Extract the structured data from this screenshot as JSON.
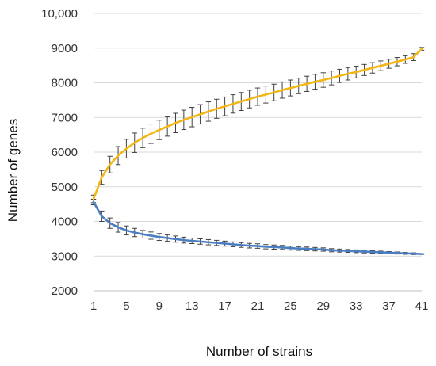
{
  "chart_data": {
    "type": "line",
    "xlabel": "Number of strains",
    "ylabel": "Number of genes",
    "xlim": [
      1,
      41
    ],
    "ylim": [
      2000,
      10000
    ],
    "x_ticks": [
      1,
      5,
      9,
      13,
      17,
      21,
      25,
      29,
      33,
      37,
      41
    ],
    "y_ticks": [
      2000,
      3000,
      4000,
      5000,
      6000,
      7000,
      8000,
      9000,
      10000
    ],
    "y_tick_labels": [
      "2000",
      "3000",
      "4000",
      "5000",
      "6000",
      "7000",
      "8000",
      "9000",
      "10,000"
    ],
    "grid": "horizontal",
    "legend": "none",
    "error_bar_color": "#404040",
    "x": [
      1,
      2,
      3,
      4,
      5,
      6,
      7,
      8,
      9,
      10,
      11,
      12,
      13,
      14,
      15,
      16,
      17,
      18,
      19,
      20,
      21,
      22,
      23,
      24,
      25,
      26,
      27,
      28,
      29,
      30,
      31,
      32,
      33,
      34,
      35,
      36,
      37,
      38,
      39,
      40,
      41
    ],
    "series": [
      {
        "color": "#F2B616",
        "values": [
          4650,
          5270,
          5640,
          5900,
          6100,
          6270,
          6410,
          6530,
          6640,
          6740,
          6840,
          6930,
          7010,
          7090,
          7170,
          7250,
          7320,
          7390,
          7460,
          7530,
          7600,
          7660,
          7720,
          7790,
          7850,
          7910,
          7970,
          8030,
          8080,
          8140,
          8200,
          8260,
          8310,
          8370,
          8430,
          8490,
          8550,
          8610,
          8670,
          8740,
          8980
        ],
        "errors": [
          110,
          200,
          240,
          260,
          270,
          280,
          280,
          280,
          280,
          280,
          280,
          280,
          280,
          280,
          280,
          275,
          270,
          265,
          260,
          255,
          250,
          245,
          240,
          235,
          230,
          225,
          220,
          215,
          210,
          200,
          190,
          180,
          170,
          160,
          150,
          140,
          130,
          120,
          110,
          100,
          40
        ]
      },
      {
        "color": "#4A7EC2",
        "values": [
          4560,
          4150,
          3950,
          3830,
          3740,
          3680,
          3630,
          3590,
          3550,
          3520,
          3490,
          3460,
          3440,
          3420,
          3400,
          3380,
          3360,
          3340,
          3320,
          3300,
          3290,
          3270,
          3260,
          3250,
          3230,
          3220,
          3210,
          3200,
          3190,
          3170,
          3160,
          3150,
          3140,
          3130,
          3120,
          3110,
          3100,
          3090,
          3080,
          3070,
          3060
        ],
        "errors": [
          80,
          150,
          150,
          140,
          130,
          120,
          110,
          105,
          100,
          95,
          90,
          85,
          80,
          78,
          76,
          74,
          72,
          70,
          68,
          66,
          64,
          62,
          60,
          58,
          56,
          54,
          52,
          50,
          48,
          46,
          44,
          42,
          40,
          38,
          36,
          34,
          32,
          30,
          28,
          26,
          10
        ]
      }
    ]
  }
}
